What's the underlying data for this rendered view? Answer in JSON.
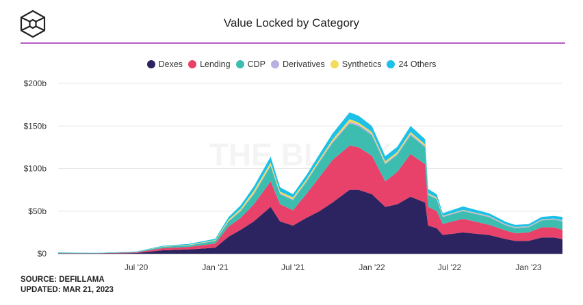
{
  "header": {
    "title": "Value Locked by Category",
    "logo": "The Block"
  },
  "watermark": "THE BLOCK",
  "footer": {
    "source": "SOURCE: DEFILLAMA",
    "updated": "UPDATED: MAR 21, 2023"
  },
  "chart_data": {
    "type": "area",
    "stacked": true,
    "title": "Value Locked by Category",
    "xlabel": "",
    "ylabel": "",
    "ylim": [
      0,
      200
    ],
    "xlim": [
      "2020-01-01",
      "2023-03-21"
    ],
    "y_ticks": [
      "$0",
      "$50b",
      "$100b",
      "$150b",
      "$200b"
    ],
    "y_tick_values": [
      0,
      50,
      100,
      150,
      200
    ],
    "x_ticks": [
      "Jul '20",
      "Jan '21",
      "Jul '21",
      "Jan '22",
      "Jul '22",
      "Jan '23"
    ],
    "x_tick_dates": [
      "2020-07-01",
      "2021-01-01",
      "2021-07-01",
      "2022-01-01",
      "2022-07-01",
      "2023-01-01"
    ],
    "grid": true,
    "legend_position": "top",
    "unit": "USD billions",
    "x": [
      "2020-01-01",
      "2020-04-01",
      "2020-07-01",
      "2020-09-01",
      "2020-11-01",
      "2021-01-01",
      "2021-02-01",
      "2021-03-01",
      "2021-04-01",
      "2021-05-10",
      "2021-06-01",
      "2021-07-01",
      "2021-08-01",
      "2021-09-01",
      "2021-10-01",
      "2021-11-10",
      "2021-12-01",
      "2022-01-01",
      "2022-02-01",
      "2022-03-01",
      "2022-04-01",
      "2022-05-05",
      "2022-05-12",
      "2022-06-01",
      "2022-06-15",
      "2022-08-01",
      "2022-10-01",
      "2022-11-10",
      "2022-12-01",
      "2023-01-01",
      "2023-02-01",
      "2023-03-01",
      "2023-03-21"
    ],
    "series": [
      {
        "name": "Dexes",
        "color": "#2b2460",
        "values": [
          0.3,
          0.3,
          0.8,
          4,
          5,
          7,
          20,
          28,
          38,
          55,
          38,
          33,
          42,
          50,
          60,
          75,
          75,
          70,
          55,
          58,
          67,
          60,
          33,
          30,
          22,
          25,
          22,
          17,
          15,
          15,
          19,
          19,
          17
        ]
      },
      {
        "name": "Lending",
        "color": "#e8426b",
        "values": [
          0.3,
          0.2,
          0.8,
          2.5,
          3,
          5,
          12,
          14,
          20,
          30,
          20,
          18,
          28,
          40,
          50,
          52,
          50,
          45,
          30,
          38,
          50,
          45,
          22,
          20,
          13,
          16,
          12,
          10,
          9,
          10,
          12,
          12,
          11
        ]
      },
      {
        "name": "CDP",
        "color": "#3dbdb0",
        "values": [
          0.6,
          0.3,
          0.5,
          1.5,
          2,
          3,
          6,
          8,
          12,
          18,
          12,
          12,
          14,
          18,
          20,
          26,
          25,
          24,
          20,
          20,
          22,
          20,
          14,
          14,
          8,
          9,
          9,
          6,
          6,
          6,
          8,
          9,
          10
        ]
      },
      {
        "name": "Derivatives",
        "color": "#b8b0e0",
        "values": [
          0,
          0,
          0.1,
          0.2,
          0.2,
          0.3,
          0.5,
          0.7,
          1,
          1,
          1,
          1,
          1,
          1,
          1.5,
          2,
          2,
          2,
          1.5,
          1.5,
          2,
          1.5,
          1,
          1,
          1,
          1,
          1,
          1,
          1,
          1,
          1,
          1,
          1
        ]
      },
      {
        "name": "Synthetics",
        "color": "#f2dd5a",
        "values": [
          0,
          0,
          0.1,
          0.3,
          0.4,
          0.8,
          1.5,
          2,
          3,
          3,
          2,
          2,
          2,
          2,
          2.5,
          3,
          2,
          2,
          2,
          2,
          2,
          2,
          1,
          1,
          0.5,
          0.5,
          0.5,
          0.3,
          0.3,
          0.3,
          0.3,
          0.3,
          0.3
        ]
      },
      {
        "name": "24 Others",
        "color": "#1cc0e8",
        "values": [
          0.3,
          0.2,
          0.3,
          0.8,
          1,
          1.5,
          3,
          4,
          5,
          7,
          5,
          4,
          5,
          6,
          7,
          8,
          8,
          7,
          6,
          6,
          7,
          6,
          5,
          4,
          3,
          4,
          3,
          3,
          2.5,
          2.5,
          3,
          3,
          4
        ]
      }
    ]
  }
}
